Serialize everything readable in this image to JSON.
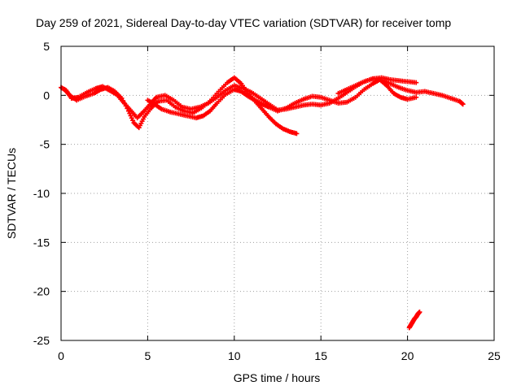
{
  "chart_data": {
    "type": "scatter",
    "title": "Day 259 of 2021, Sidereal Day-to-day VTEC variation (SDTVAR) for receiver tomp",
    "xlabel": "GPS time / hours",
    "ylabel": "SDTVAR / TECUs",
    "xlim": [
      0,
      25
    ],
    "ylim": [
      -25,
      5
    ],
    "x_ticks": [
      0,
      5,
      10,
      15,
      20,
      25
    ],
    "y_ticks": [
      5,
      0,
      -5,
      -10,
      -15,
      -20,
      -25
    ],
    "x_tick_labels": [
      "0",
      "5",
      "10",
      "15",
      "20",
      "25"
    ],
    "y_tick_labels": [
      "5",
      "0",
      "-5",
      "-10",
      "-15",
      "-20",
      "-25"
    ],
    "grid": true,
    "grid_style": "dotted",
    "marker": "plus",
    "series": [
      {
        "name": "track-1",
        "color": "#ff0000",
        "points": [
          [
            0.0,
            0.8
          ],
          [
            0.3,
            0.5
          ],
          [
            0.6,
            -0.3
          ],
          [
            1.0,
            -0.2
          ],
          [
            1.5,
            0.3
          ],
          [
            2.0,
            0.7
          ],
          [
            2.4,
            0.9
          ],
          [
            2.8,
            0.5
          ],
          [
            3.2,
            0.1
          ],
          [
            3.6,
            -0.7
          ],
          [
            4.0,
            -1.5
          ],
          [
            4.4,
            -2.3
          ],
          [
            4.8,
            -1.6
          ],
          [
            5.2,
            -0.8
          ],
          [
            5.5,
            -0.2
          ],
          [
            6.0,
            0.0
          ],
          [
            6.5,
            -0.5
          ],
          [
            7.0,
            -1.2
          ],
          [
            7.5,
            -1.4
          ],
          [
            8.0,
            -1.2
          ],
          [
            8.5,
            -0.8
          ],
          [
            9.0,
            -0.2
          ],
          [
            9.5,
            0.5
          ],
          [
            10.0,
            1.0
          ],
          [
            10.5,
            0.7
          ],
          [
            11.0,
            0.3
          ],
          [
            11.5,
            -0.3
          ],
          [
            12.0,
            -0.9
          ],
          [
            12.5,
            -1.5
          ],
          [
            13.0,
            -1.4
          ],
          [
            13.5,
            -1.2
          ],
          [
            14.0,
            -1.0
          ],
          [
            14.5,
            -0.9
          ],
          [
            15.0,
            -1.0
          ],
          [
            15.5,
            -0.8
          ],
          [
            16.0,
            -0.3
          ],
          [
            16.5,
            0.3
          ],
          [
            17.0,
            0.9
          ],
          [
            17.5,
            1.4
          ],
          [
            18.0,
            1.7
          ],
          [
            18.5,
            1.8
          ],
          [
            19.0,
            1.6
          ],
          [
            19.5,
            1.5
          ],
          [
            20.0,
            1.4
          ],
          [
            20.5,
            1.3
          ]
        ]
      },
      {
        "name": "track-2",
        "color": "#ff0000",
        "points": [
          [
            0.2,
            0.6
          ],
          [
            0.5,
            0.0
          ],
          [
            0.9,
            -0.5
          ],
          [
            1.4,
            -0.1
          ],
          [
            1.9,
            0.2
          ],
          [
            2.3,
            0.6
          ],
          [
            2.7,
            0.8
          ],
          [
            3.1,
            0.4
          ],
          [
            3.5,
            -0.3
          ],
          [
            3.9,
            -1.6
          ],
          [
            4.2,
            -2.8
          ],
          [
            4.5,
            -3.3
          ],
          [
            4.8,
            -2.2
          ],
          [
            5.2,
            -1.3
          ],
          [
            5.6,
            -0.6
          ],
          [
            6.1,
            -0.5
          ],
          [
            6.6,
            -1.2
          ],
          [
            7.1,
            -1.6
          ],
          [
            7.6,
            -1.8
          ],
          [
            8.1,
            -1.3
          ],
          [
            8.6,
            -0.6
          ],
          [
            9.1,
            0.4
          ],
          [
            9.6,
            1.3
          ],
          [
            10.0,
            1.8
          ],
          [
            10.4,
            1.2
          ],
          [
            10.8,
            0.2
          ],
          [
            11.2,
            -0.6
          ],
          [
            11.6,
            -1.4
          ],
          [
            12.0,
            -2.2
          ],
          [
            12.4,
            -2.9
          ],
          [
            12.8,
            -3.4
          ],
          [
            13.2,
            -3.7
          ],
          [
            13.6,
            -3.9
          ]
        ]
      },
      {
        "name": "track-3",
        "color": "#ff0000",
        "points": [
          [
            5.0,
            -0.5
          ],
          [
            5.4,
            -0.9
          ],
          [
            5.8,
            -1.4
          ],
          [
            6.3,
            -1.7
          ],
          [
            6.8,
            -1.9
          ],
          [
            7.3,
            -2.1
          ],
          [
            7.8,
            -2.3
          ],
          [
            8.2,
            -2.1
          ],
          [
            8.6,
            -1.6
          ],
          [
            9.0,
            -0.8
          ],
          [
            9.5,
            0.1
          ],
          [
            10.0,
            0.6
          ],
          [
            10.4,
            0.4
          ],
          [
            10.8,
            -0.1
          ],
          [
            11.2,
            -0.5
          ],
          [
            11.6,
            -0.9
          ],
          [
            12.0,
            -1.2
          ],
          [
            12.5,
            -1.6
          ],
          [
            13.0,
            -1.3
          ],
          [
            13.5,
            -0.8
          ],
          [
            14.0,
            -0.4
          ],
          [
            14.5,
            -0.1
          ],
          [
            15.0,
            -0.2
          ],
          [
            15.5,
            -0.5
          ],
          [
            16.0,
            -0.8
          ],
          [
            16.5,
            -0.7
          ],
          [
            17.0,
            -0.2
          ],
          [
            17.5,
            0.6
          ],
          [
            18.0,
            1.2
          ],
          [
            18.4,
            1.6
          ],
          [
            18.8,
            1.0
          ],
          [
            19.2,
            0.2
          ],
          [
            19.6,
            -0.2
          ],
          [
            20.0,
            -0.4
          ],
          [
            20.5,
            -0.2
          ]
        ]
      },
      {
        "name": "track-4",
        "color": "#ff0000",
        "points": [
          [
            16.0,
            0.2
          ],
          [
            16.5,
            0.6
          ],
          [
            17.0,
            1.0
          ],
          [
            17.5,
            1.4
          ],
          [
            18.0,
            1.7
          ],
          [
            18.5,
            1.6
          ],
          [
            19.0,
            1.2
          ],
          [
            19.5,
            0.8
          ],
          [
            20.0,
            0.5
          ],
          [
            20.5,
            0.3
          ],
          [
            21.0,
            0.4
          ],
          [
            21.5,
            0.2
          ],
          [
            22.0,
            0.0
          ],
          [
            22.5,
            -0.3
          ],
          [
            23.0,
            -0.6
          ],
          [
            23.2,
            -0.9
          ]
        ]
      },
      {
        "name": "track-5",
        "color": "#ff0000",
        "points": [
          [
            20.1,
            -23.7
          ],
          [
            20.2,
            -23.4
          ],
          [
            20.3,
            -23.1
          ],
          [
            20.4,
            -22.8
          ],
          [
            20.5,
            -22.6
          ],
          [
            20.6,
            -22.3
          ],
          [
            20.7,
            -22.1
          ]
        ]
      }
    ]
  }
}
